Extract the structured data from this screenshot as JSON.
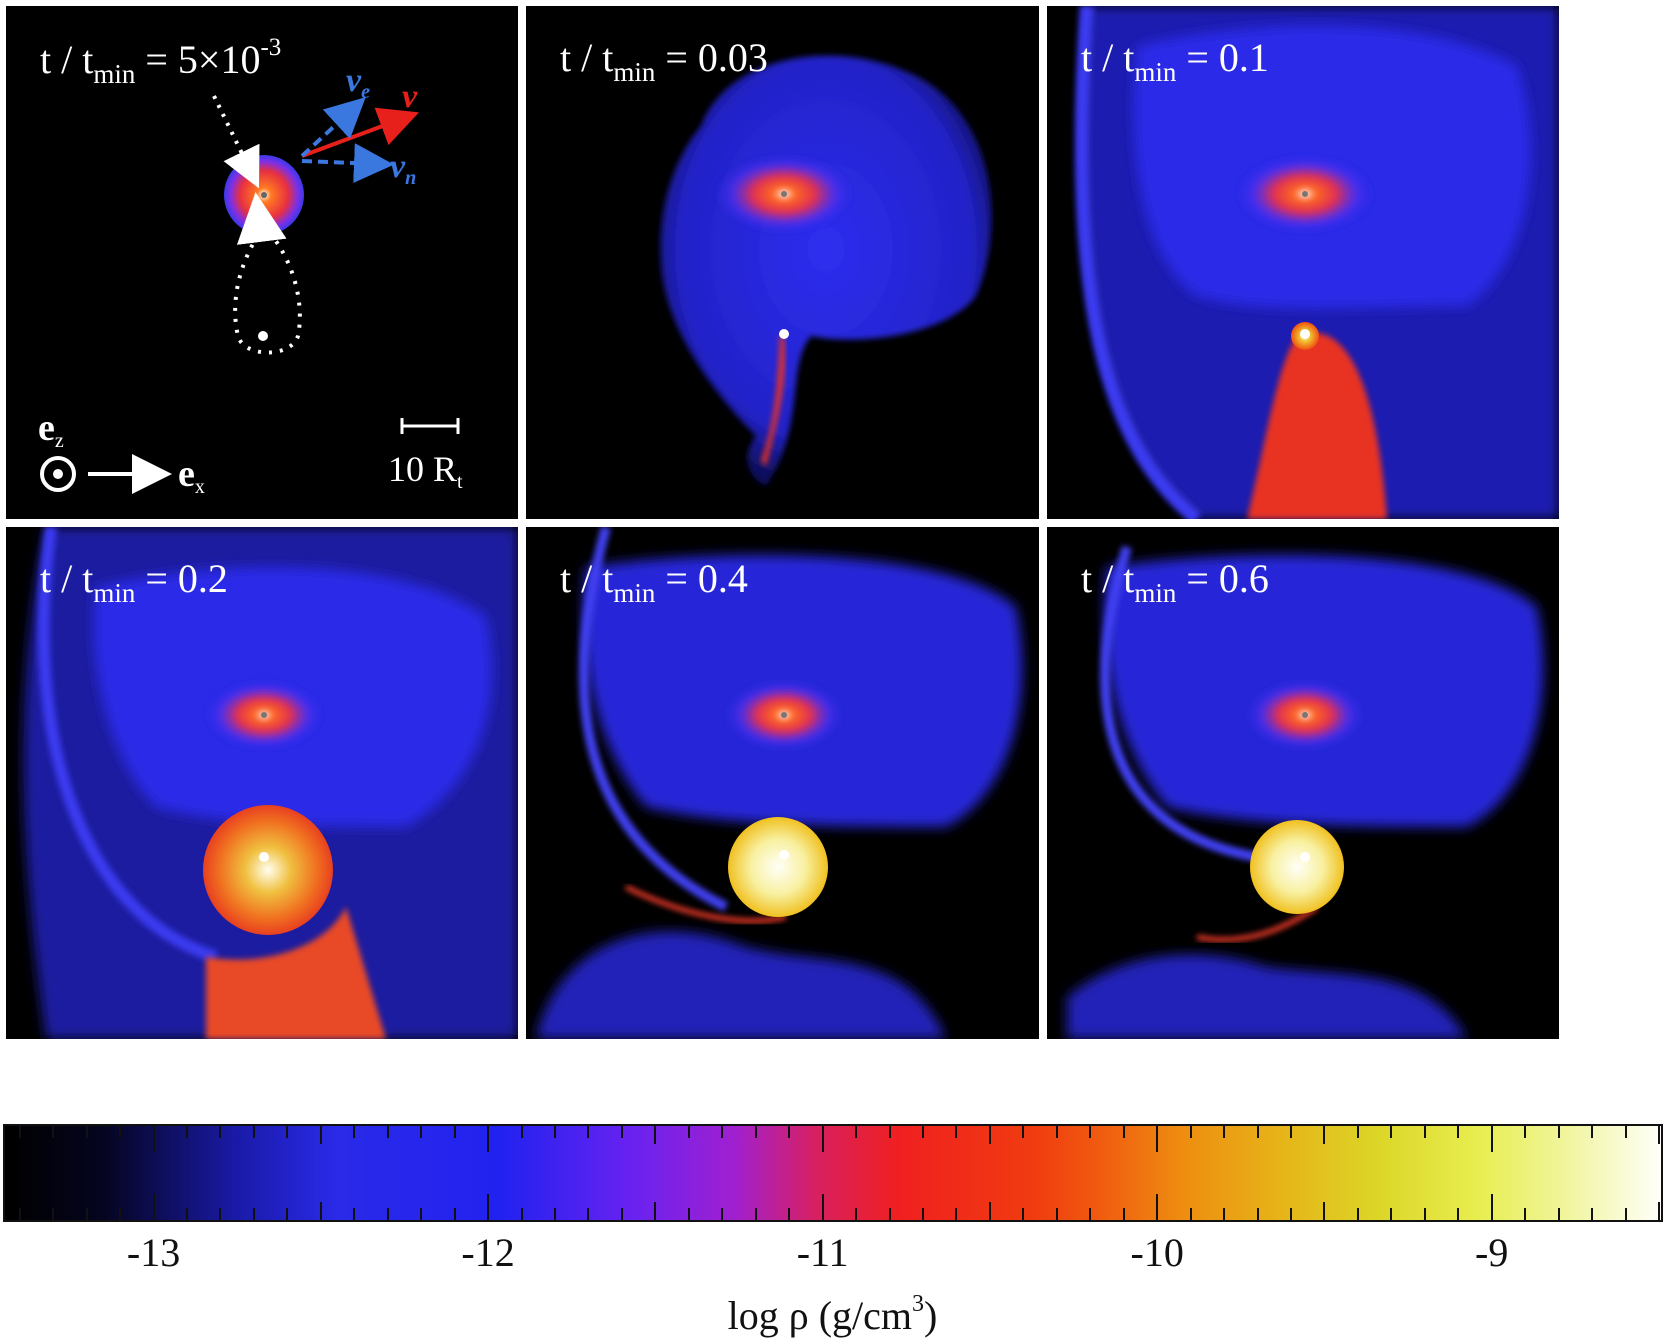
{
  "panels": [
    {
      "id": "p1",
      "title_pre": "t / t",
      "title_sub": "min",
      "title_post": " = 5×10",
      "title_sup": "-3"
    },
    {
      "id": "p2",
      "title_pre": "t / t",
      "title_sub": "min",
      "title_post": " = 0.03",
      "title_sup": ""
    },
    {
      "id": "p3",
      "title_pre": "t / t",
      "title_sub": "min",
      "title_post": " = 0.1",
      "title_sup": ""
    },
    {
      "id": "p4",
      "title_pre": "t / t",
      "title_sub": "min",
      "title_post": " = 0.2",
      "title_sup": ""
    },
    {
      "id": "p5",
      "title_pre": "t / t",
      "title_sub": "min",
      "title_post": " = 0.4",
      "title_sup": ""
    },
    {
      "id": "p6",
      "title_pre": "t / t",
      "title_sub": "min",
      "title_post": " = 0.6",
      "title_sup": ""
    }
  ],
  "annotations": {
    "ve_label": "v",
    "ve_sub": "e",
    "v_label": "v",
    "vn_label": "v",
    "vn_sub": "n",
    "ez_label": "e",
    "ez_sub": "z",
    "ex_label": "e",
    "ex_sub": "x",
    "scale_value": "10 R",
    "scale_sub": "t"
  },
  "colorbar": {
    "title_pre": "log ρ (g/cm",
    "title_sup": "3",
    "title_post": ")",
    "tick_labels": [
      "-13",
      "-12",
      "-11",
      "-10",
      "-9"
    ],
    "range": [
      -13.45,
      -8.5
    ],
    "colors": {
      "low": "#000000",
      "blue": "#2a2ae8",
      "red": "#f02020",
      "orange": "#f05a10",
      "yellow": "#dcd628",
      "high": "#fffffa"
    }
  },
  "arrow_colors": {
    "v": "#e8201c",
    "ve": "#3a78e0",
    "vn": "#3a78e0"
  }
}
